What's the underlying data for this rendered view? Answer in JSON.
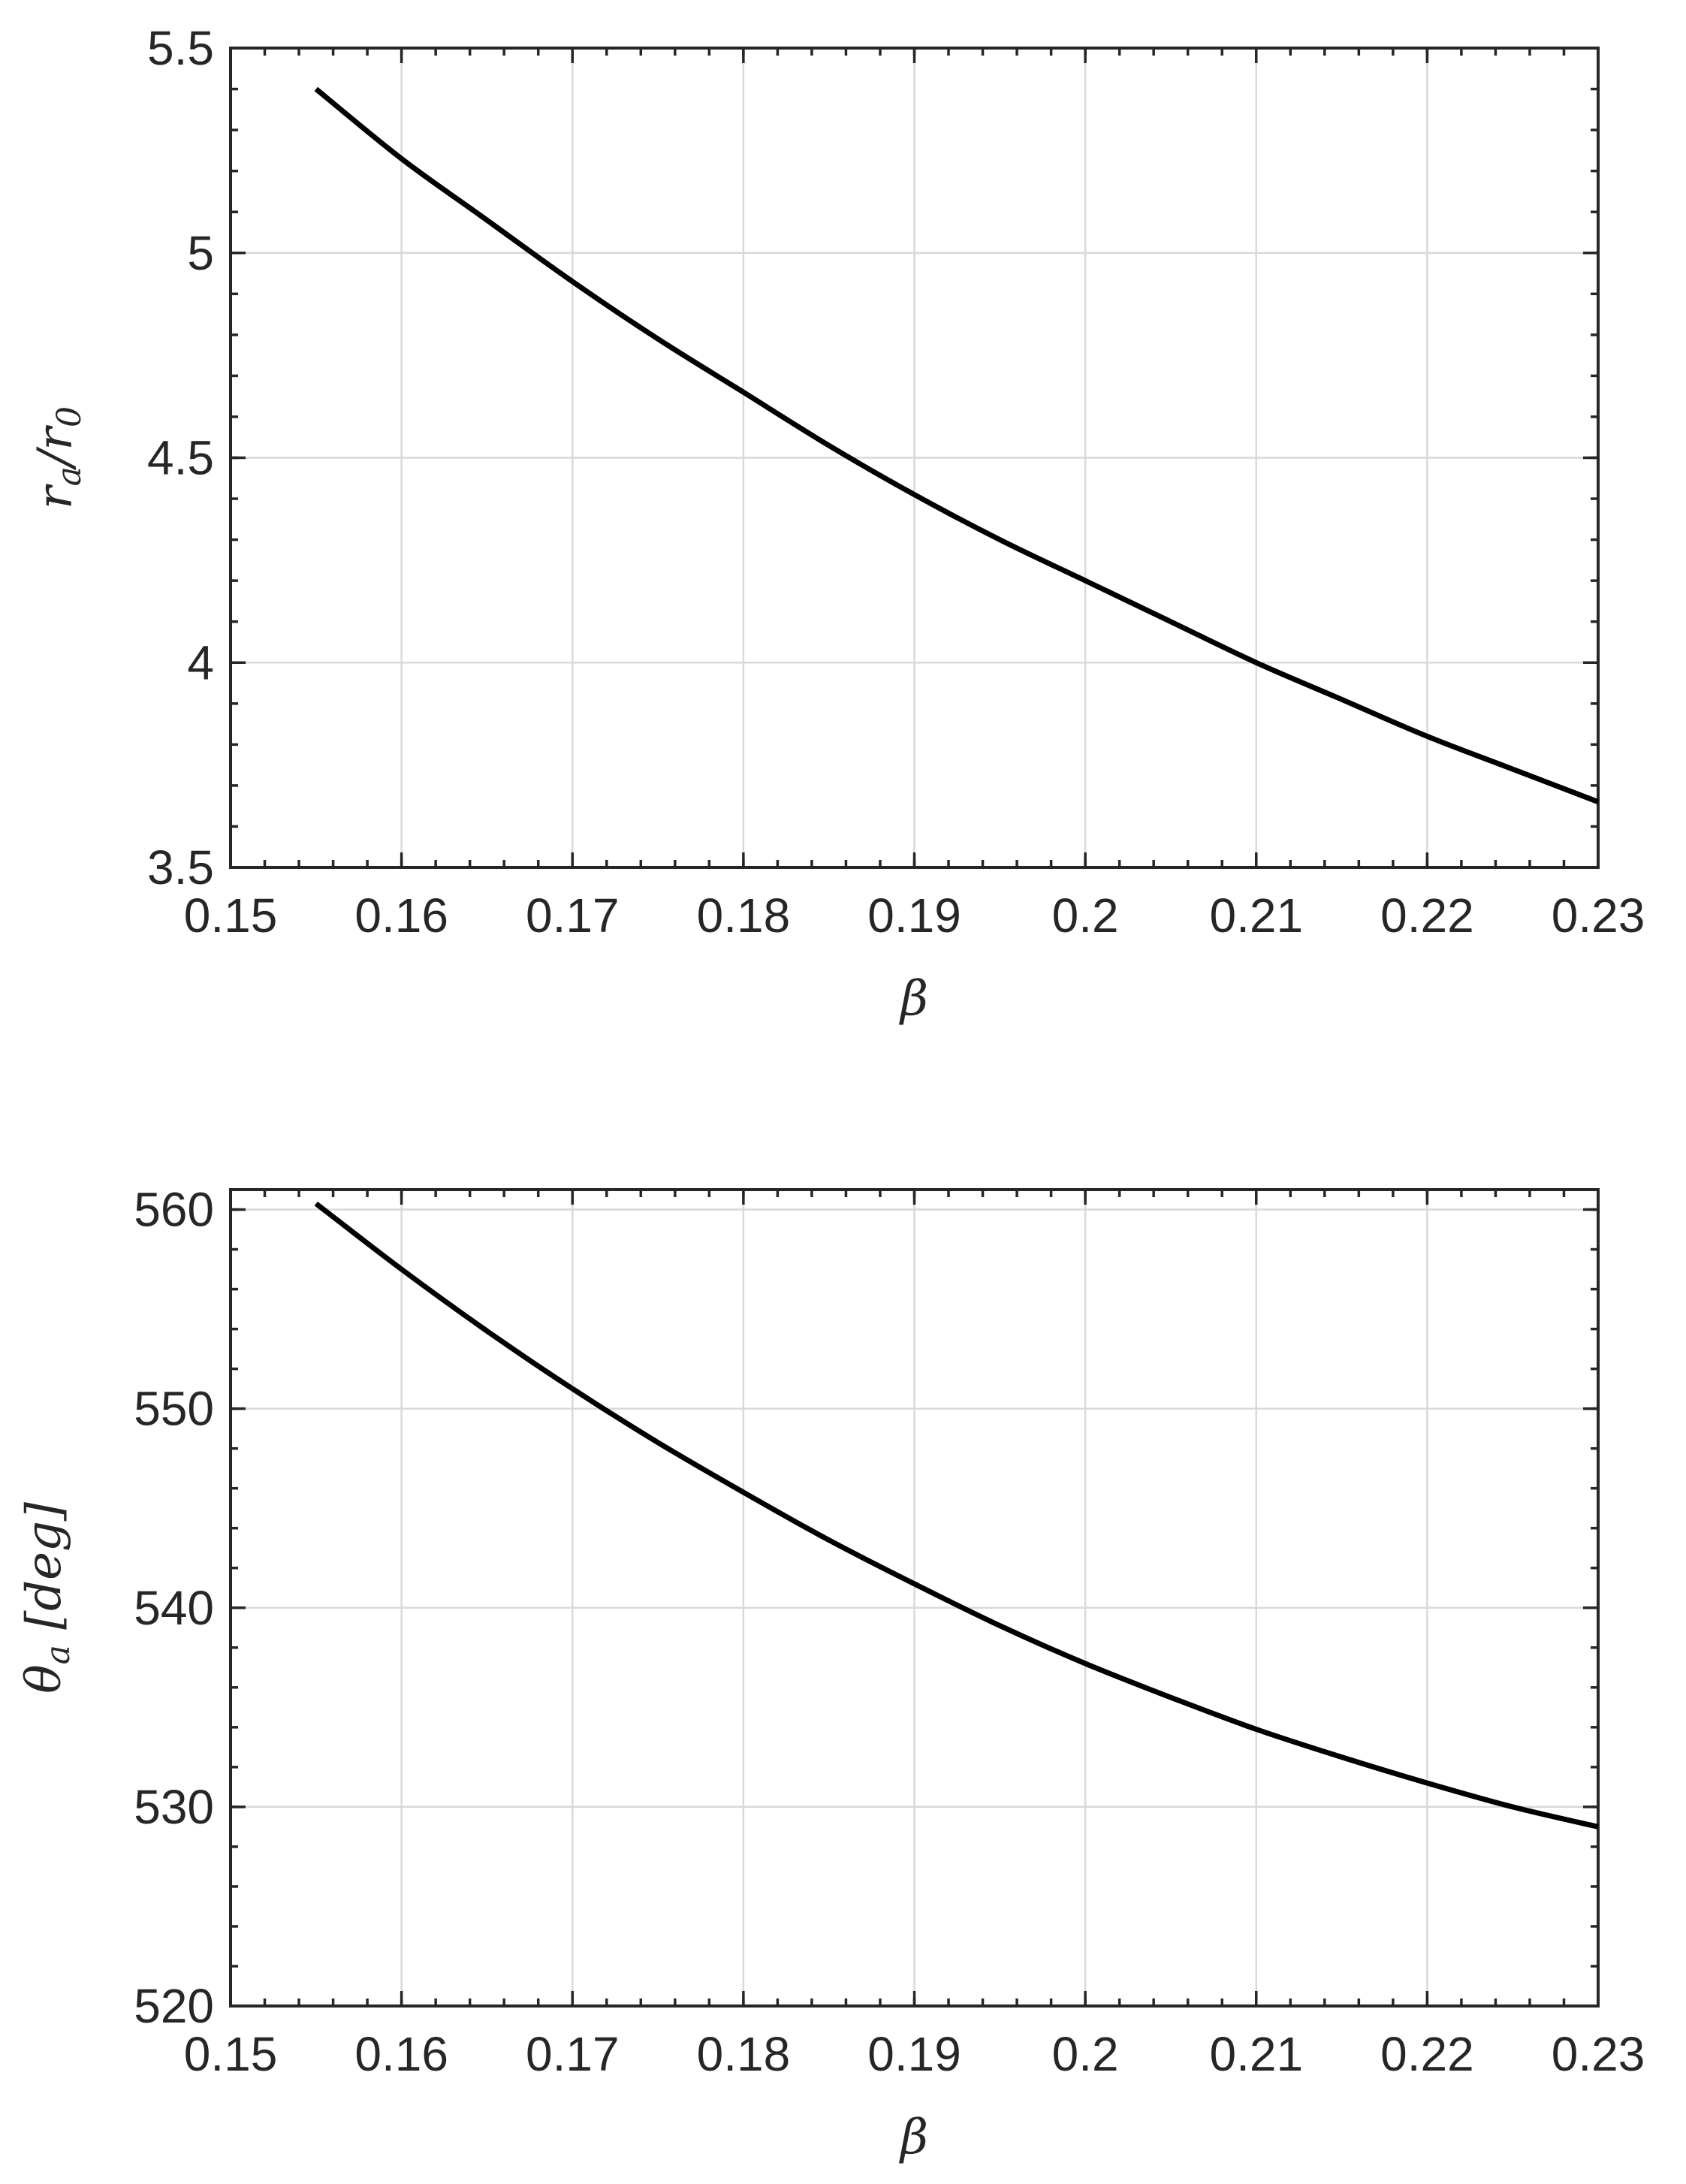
{
  "chart_data": [
    {
      "type": "line",
      "title": "",
      "xlabel": "β",
      "ylabel": {
        "main": "r",
        "sub1": "a",
        "slash": "/r",
        "sub2": "0"
      },
      "xlim": [
        0.15,
        0.23
      ],
      "ylim": [
        3.5,
        5.5
      ],
      "xticks": [
        "0.15",
        "0.16",
        "0.17",
        "0.18",
        "0.19",
        "0.2",
        "0.21",
        "0.22",
        "0.23"
      ],
      "yticks": [
        "3.5",
        "4",
        "4.5",
        "5",
        "5.5"
      ],
      "grid": true,
      "series": [
        {
          "x": [
            0.155,
            0.16,
            0.165,
            0.17,
            0.175,
            0.18,
            0.185,
            0.19,
            0.195,
            0.2,
            0.205,
            0.21,
            0.215,
            0.22,
            0.225,
            0.23
          ],
          "y": [
            5.4,
            5.23,
            5.08,
            4.93,
            4.79,
            4.66,
            4.53,
            4.41,
            4.3,
            4.2,
            4.1,
            4.0,
            3.91,
            3.82,
            3.74,
            3.66
          ]
        }
      ]
    },
    {
      "type": "line",
      "title": "",
      "xlabel": "β",
      "ylabel": {
        "main": "θ",
        "sub1": "a",
        "rest": " [deg]"
      },
      "xlim": [
        0.15,
        0.23
      ],
      "ylim": [
        520,
        561
      ],
      "xticks": [
        "0.15",
        "0.16",
        "0.17",
        "0.18",
        "0.19",
        "0.2",
        "0.21",
        "0.22",
        "0.23"
      ],
      "yticks": [
        "520",
        "530",
        "540",
        "550",
        "560"
      ],
      "grid": true,
      "series": [
        {
          "x": [
            0.155,
            0.16,
            0.165,
            0.17,
            0.175,
            0.18,
            0.185,
            0.19,
            0.195,
            0.2,
            0.205,
            0.21,
            0.215,
            0.22,
            0.225,
            0.23
          ],
          "y": [
            560.3,
            557.0,
            553.9,
            551.0,
            548.3,
            545.8,
            543.4,
            541.2,
            539.1,
            537.2,
            535.5,
            533.9,
            532.5,
            531.2,
            530.0,
            529.0
          ]
        }
      ]
    }
  ]
}
